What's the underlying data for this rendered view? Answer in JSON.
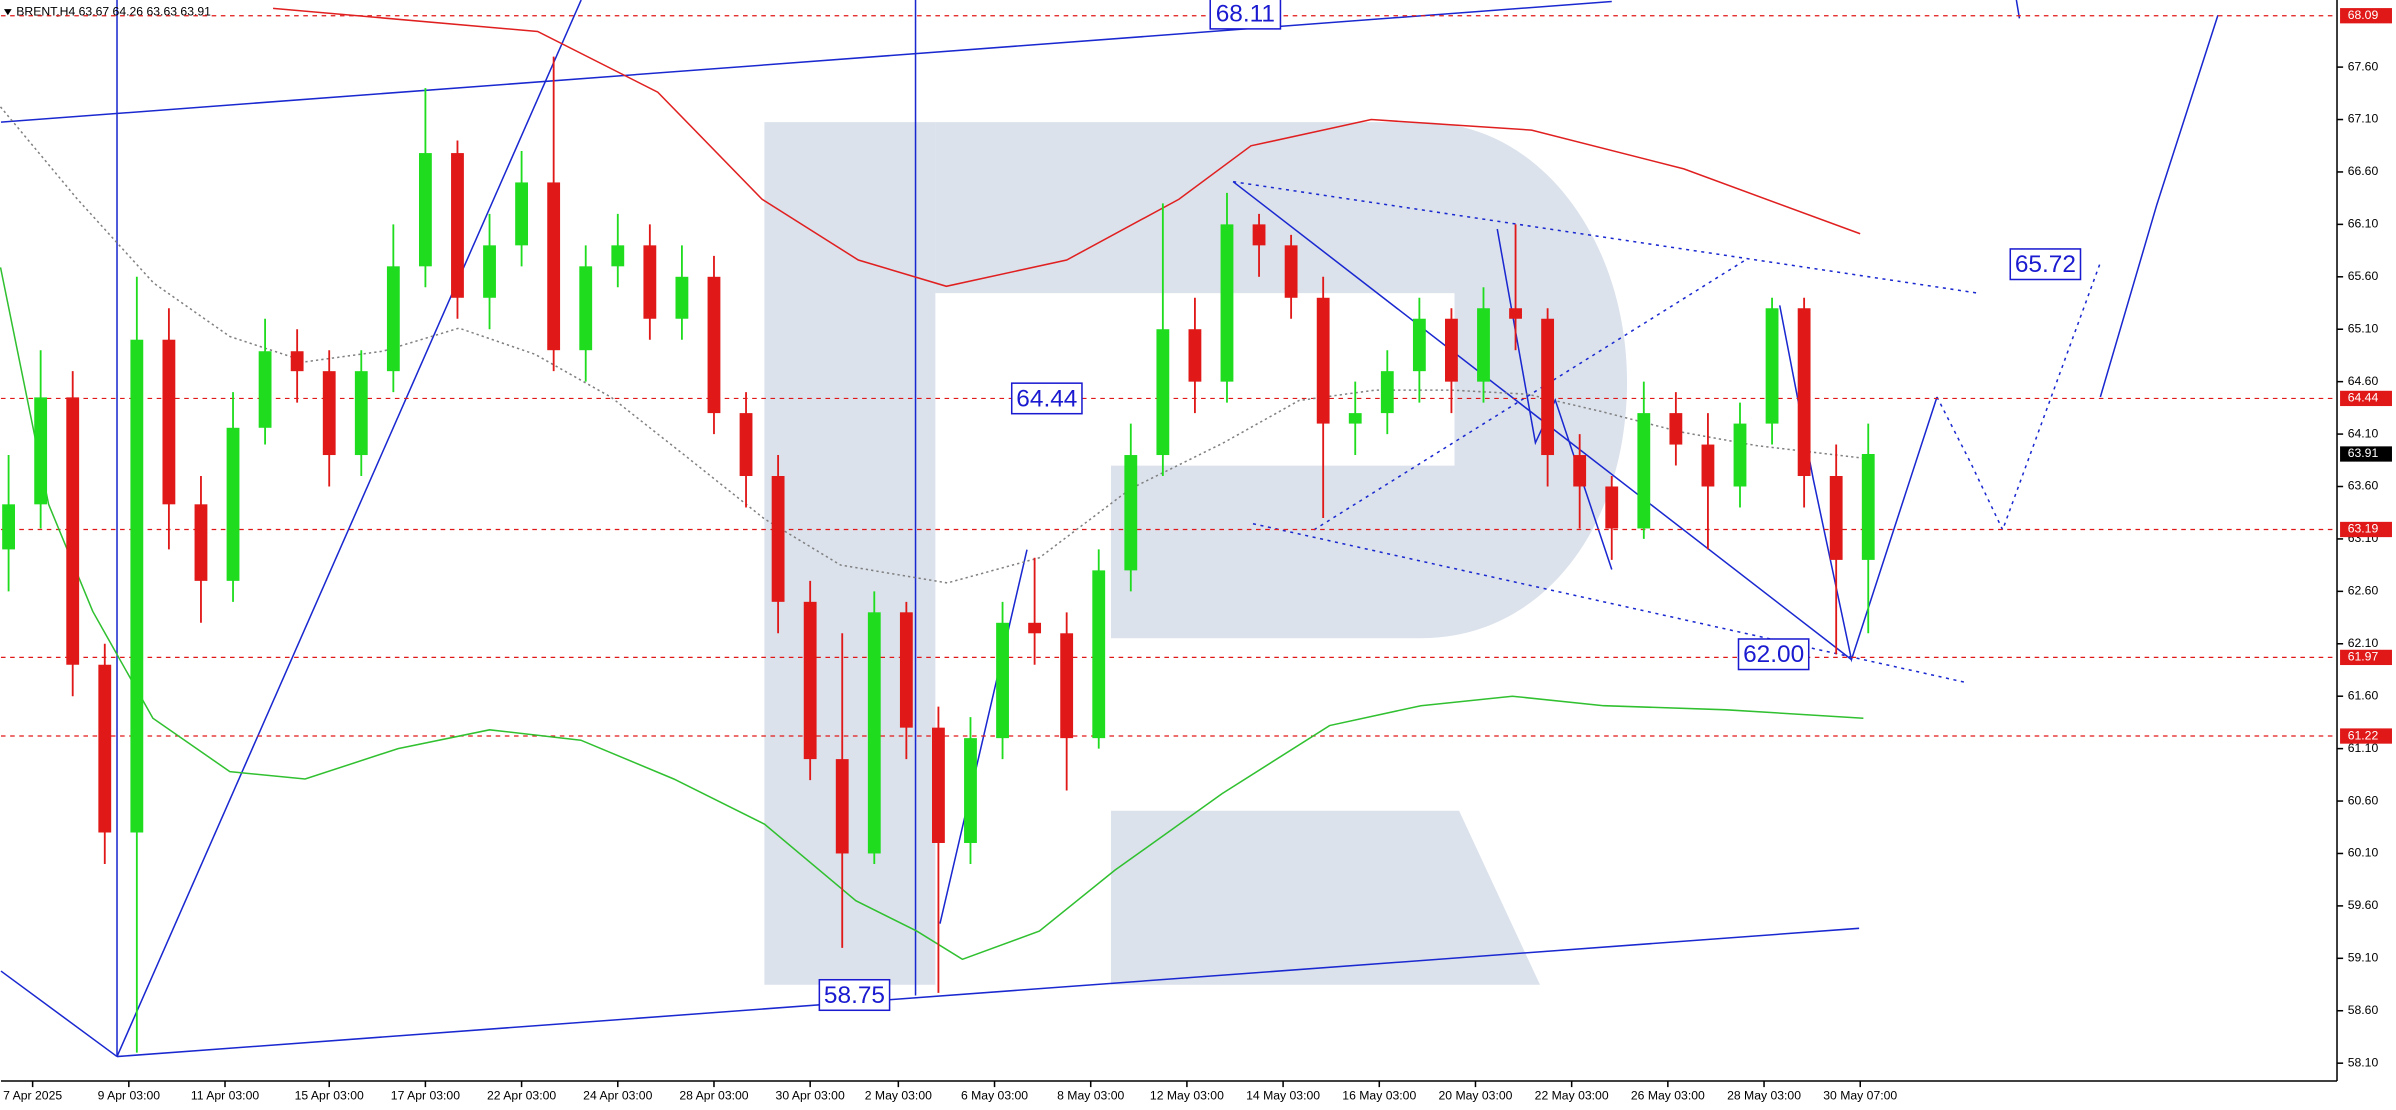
{
  "chart_data": {
    "type": "candlestick",
    "title": "BRENT,H4 63.67 64.26 63.63 63.91",
    "up_color": "#1fdc1f",
    "down_color": "#e01818",
    "xlim": [
      -0.95,
      290.48
    ],
    "ylim": [
      57.93,
      68.24
    ],
    "x": [
      0,
      4,
      8,
      12,
      16,
      20,
      24,
      28,
      32,
      36,
      40,
      44,
      48,
      52,
      56,
      60,
      64,
      68,
      72,
      76,
      80,
      84,
      88,
      92,
      96,
      100,
      104,
      108,
      112,
      116,
      120,
      124,
      128,
      132,
      136,
      140,
      144,
      148,
      152,
      156,
      160,
      164,
      168,
      172,
      176,
      180,
      184,
      188,
      192,
      196,
      200,
      204,
      208,
      212,
      216,
      220,
      224,
      228,
      232
    ],
    "open": [
      63.0,
      63.43,
      64.45,
      61.9,
      60.3,
      65.0,
      63.43,
      62.7,
      64.16,
      64.89,
      64.7,
      63.9,
      64.7,
      65.7,
      66.78,
      65.4,
      65.9,
      66.5,
      64.9,
      65.7,
      65.9,
      65.2,
      65.6,
      64.3,
      63.7,
      62.5,
      61.0,
      60.1,
      62.4,
      61.3,
      60.2,
      61.2,
      62.3,
      62.2,
      61.2,
      62.8,
      63.9,
      65.1,
      64.6,
      66.1,
      65.9,
      65.4,
      64.2,
      64.3,
      64.7,
      65.2,
      64.6,
      65.3,
      65.2,
      63.9,
      63.6,
      63.2,
      64.3,
      64.0,
      63.6,
      64.2,
      65.3,
      63.7,
      62.9
    ],
    "high": [
      63.9,
      64.9,
      64.7,
      62.1,
      65.6,
      65.3,
      63.7,
      64.5,
      65.2,
      65.1,
      64.9,
      64.9,
      66.1,
      67.4,
      66.9,
      66.2,
      66.8,
      67.7,
      65.9,
      66.2,
      66.1,
      65.9,
      65.8,
      64.5,
      63.9,
      62.7,
      62.2,
      62.6,
      62.5,
      61.5,
      61.4,
      62.5,
      62.92,
      62.4,
      63.0,
      64.2,
      66.3,
      65.4,
      66.4,
      66.2,
      66.0,
      65.6,
      64.6,
      64.9,
      65.4,
      65.3,
      65.5,
      66.1,
      65.3,
      64.1,
      63.7,
      64.6,
      64.5,
      64.3,
      64.4,
      65.4,
      65.4,
      64.0,
      64.2
    ],
    "low": [
      62.6,
      63.2,
      61.6,
      60.0,
      58.2,
      63.0,
      62.3,
      62.5,
      64.0,
      64.4,
      63.6,
      63.7,
      64.5,
      65.5,
      65.2,
      65.1,
      65.7,
      64.7,
      64.6,
      65.5,
      65.0,
      65.0,
      64.1,
      63.4,
      62.2,
      60.8,
      59.2,
      60.0,
      61.0,
      58.77,
      60.0,
      61.0,
      61.9,
      60.7,
      61.1,
      62.6,
      63.7,
      64.3,
      64.4,
      65.6,
      65.2,
      63.3,
      63.9,
      64.1,
      64.4,
      64.3,
      64.4,
      64.9,
      63.6,
      63.2,
      62.9,
      63.1,
      63.8,
      63.0,
      63.4,
      64.0,
      63.4,
      62.0,
      62.2
    ],
    "close": [
      63.43,
      64.45,
      61.9,
      60.3,
      65.0,
      63.43,
      62.7,
      64.16,
      64.89,
      64.7,
      63.9,
      64.7,
      65.7,
      66.78,
      65.4,
      65.9,
      66.5,
      64.9,
      65.7,
      65.9,
      65.2,
      65.6,
      64.3,
      63.7,
      62.5,
      61.0,
      60.1,
      62.4,
      61.3,
      60.2,
      61.2,
      62.3,
      62.2,
      61.2,
      62.8,
      63.9,
      65.1,
      64.6,
      66.1,
      65.9,
      65.4,
      64.2,
      64.3,
      64.7,
      65.2,
      64.6,
      65.3,
      65.2,
      63.9,
      63.6,
      63.2,
      64.3,
      64.0,
      63.6,
      64.2,
      65.3,
      63.7,
      62.9,
      63.91
    ],
    "lines": [
      {
        "color": "#e02020",
        "style": "solid",
        "x": [
          33,
          66,
          81,
          94,
          106,
          117,
          132,
          146,
          155,
          170,
          190,
          209,
          231
        ],
        "values": [
          68.16,
          67.94,
          67.36,
          66.34,
          65.76,
          65.51,
          65.76,
          66.34,
          66.85,
          67.1,
          67.0,
          66.63,
          66.01
        ]
      },
      {
        "color": "#30c030",
        "style": "solid",
        "x": [
          -1,
          5,
          10.5,
          18,
          27.6,
          37,
          48.6,
          60,
          71.4,
          83,
          94.3,
          105.7,
          113.3,
          119,
          128.6,
          138,
          151.4,
          164.8,
          176.2,
          187.6,
          199,
          214.3,
          231.4
        ],
        "values": [
          65.69,
          63.43,
          62.41,
          61.39,
          60.88,
          60.81,
          61.1,
          61.28,
          61.18,
          60.81,
          60.38,
          59.65,
          59.36,
          59.09,
          59.36,
          59.94,
          60.67,
          61.32,
          61.51,
          61.6,
          61.51,
          61.47,
          61.39
        ]
      },
      {
        "color": "#808080",
        "style": "dotted",
        "x": [
          -1,
          8.6,
          18.1,
          27.6,
          37.1,
          46.7,
          56.2,
          65.7,
          75.2,
          84.8,
          94.3,
          103.8,
          117.1,
          128.6,
          140,
          151.4,
          161,
          170.5,
          180,
          189.5,
          199,
          208.6,
          218.1,
          231.4
        ],
        "values": [
          67.22,
          66.34,
          65.54,
          65.03,
          64.79,
          64.89,
          65.11,
          64.86,
          64.45,
          63.87,
          63.29,
          62.85,
          62.68,
          62.92,
          63.58,
          64.01,
          64.42,
          64.52,
          64.52,
          64.48,
          64.31,
          64.12,
          63.99,
          63.87
        ]
      }
    ],
    "levels": [
      {
        "value": 68.09,
        "color": "#e01818",
        "line": true
      },
      {
        "value": 64.44,
        "color": "#e01818",
        "line": true
      },
      {
        "value": 63.91,
        "color": "#000000",
        "line": false
      },
      {
        "value": 63.19,
        "color": "#e01818",
        "line": true
      },
      {
        "value": 61.97,
        "color": "#e01818",
        "line": true
      },
      {
        "value": 61.22,
        "color": "#e01818",
        "line": true
      }
    ],
    "annotation_color": "#1a1ad0",
    "annotations": [
      {
        "value": 68.11,
        "label": "68.11"
      },
      {
        "value": 64.44,
        "label": "64.44"
      },
      {
        "value": 65.72,
        "label": "65.72"
      },
      {
        "value": 62.0,
        "label": "62.00"
      },
      {
        "value": 58.75,
        "label": "58.75"
      }
    ],
    "yticks": [
      {
        "value": 58.1,
        "label": "58.10"
      },
      {
        "value": 58.6,
        "label": "58.60"
      },
      {
        "value": 59.1,
        "label": "59.10"
      },
      {
        "value": 59.6,
        "label": "59.60"
      },
      {
        "value": 60.1,
        "label": "60.10"
      },
      {
        "value": 60.6,
        "label": "60.60"
      },
      {
        "value": 61.1,
        "label": "61.10"
      },
      {
        "value": 61.6,
        "label": "61.60"
      },
      {
        "value": 62.1,
        "label": "62.10"
      },
      {
        "value": 62.6,
        "label": "62.60"
      },
      {
        "value": 63.1,
        "label": "63.10"
      },
      {
        "value": 63.6,
        "label": "63.60"
      },
      {
        "value": 64.1,
        "label": "64.10"
      },
      {
        "value": 64.6,
        "label": "64.60"
      },
      {
        "value": 65.1,
        "label": "65.10"
      },
      {
        "value": 65.6,
        "label": "65.60"
      },
      {
        "value": 66.1,
        "label": "66.10"
      },
      {
        "value": 66.6,
        "label": "66.60"
      },
      {
        "value": 67.1,
        "label": "67.10"
      },
      {
        "value": 67.6,
        "label": "67.60"
      }
    ],
    "xticks": [
      {
        "value": 3,
        "label": "7 Apr 2025"
      },
      {
        "value": 15,
        "label": "9 Apr 03:00"
      },
      {
        "value": 27,
        "label": "11 Apr 03:00"
      },
      {
        "value": 40,
        "label": "15 Apr 03:00"
      },
      {
        "value": 52,
        "label": "17 Apr 03:00"
      },
      {
        "value": 64,
        "label": "22 Apr 03:00"
      },
      {
        "value": 76,
        "label": "24 Apr 03:00"
      },
      {
        "value": 88,
        "label": "28 Apr 03:00"
      },
      {
        "value": 100,
        "label": "30 Apr 03:00"
      },
      {
        "value": 111,
        "label": "2 May 03:00"
      },
      {
        "value": 123,
        "label": "6 May 03:00"
      },
      {
        "value": 135,
        "label": "8 May 03:00"
      },
      {
        "value": 147,
        "label": "12 May 03:00"
      },
      {
        "value": 159,
        "label": "14 May 03:00"
      },
      {
        "value": 171,
        "label": "16 May 03:00"
      },
      {
        "value": 183,
        "label": "20 May 03:00"
      },
      {
        "value": 195,
        "label": "22 May 03:00"
      },
      {
        "value": 207,
        "label": "26 May 03:00"
      },
      {
        "value": 219,
        "label": "28 May 03:00"
      },
      {
        "value": 231,
        "label": "30 May 07:00"
      }
    ]
  }
}
